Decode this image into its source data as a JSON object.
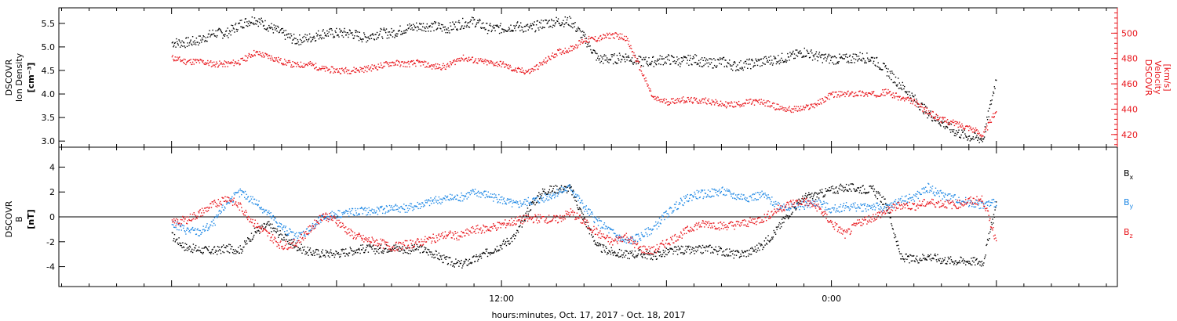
{
  "chart_data": [
    {
      "type": "scatter",
      "panel": "top",
      "ylabel_left": [
        "DSCOVR",
        "Ion Density",
        "[cm⁻³]"
      ],
      "ylabel_right": [
        "DSCOVR",
        "Velocity",
        "[km/s]"
      ],
      "ylim_left": [
        2.87,
        5.83
      ],
      "ylim_right": [
        410,
        520
      ],
      "yticks_left": [
        "3.0",
        "3.5",
        "4.0",
        "4.5",
        "5.0",
        "5.5"
      ],
      "yticks_right": [
        "420",
        "440",
        "460",
        "480",
        "500"
      ],
      "colors": {
        "density": "#000000",
        "velocity": "#e8161c"
      },
      "series": [
        {
          "axis": "left",
          "x_hours": [
            0,
            0.5,
            1,
            1.5,
            2,
            2.5,
            3,
            3.5,
            4,
            4.5,
            5,
            5.5,
            6,
            6.5,
            7,
            7.5,
            8,
            8.5,
            9,
            9.5,
            10,
            10.5,
            11,
            11.5,
            12,
            12.5,
            13,
            13.5,
            14,
            14.5,
            15,
            15.5,
            16,
            16.5,
            17,
            17.5,
            18,
            18.5,
            19,
            19.5,
            20,
            20.5,
            21,
            21.5,
            22,
            22.5,
            23,
            23.5,
            24,
            24.5,
            25,
            25.5,
            26,
            26.5,
            27,
            27.5,
            28,
            28.5,
            29,
            29.5,
            30
          ],
          "values": [
            5.1,
            5.1,
            5.15,
            5.3,
            5.3,
            5.5,
            5.6,
            5.45,
            5.3,
            5.15,
            5.2,
            5.3,
            5.3,
            5.3,
            5.2,
            5.3,
            5.3,
            5.4,
            5.45,
            5.45,
            5.4,
            5.5,
            5.55,
            5.4,
            5.4,
            5.45,
            5.4,
            5.5,
            5.55,
            5.55,
            5.2,
            4.75,
            4.75,
            4.8,
            4.7,
            4.7,
            4.75,
            4.7,
            4.75,
            4.65,
            4.7,
            4.6,
            4.65,
            4.7,
            4.75,
            4.8,
            4.9,
            4.8,
            4.75,
            4.75,
            4.8,
            4.75,
            4.5,
            4.2,
            3.9,
            3.6,
            3.4,
            3.2,
            3.1,
            3.05,
            4.4
          ]
        },
        {
          "axis": "right",
          "x_hours": [
            0,
            0.5,
            1,
            1.5,
            2,
            2.5,
            3,
            3.5,
            4,
            4.5,
            5,
            5.5,
            6,
            6.5,
            7,
            7.5,
            8,
            8.5,
            9,
            9.5,
            10,
            10.5,
            11,
            11.5,
            12,
            12.5,
            13,
            13.5,
            14,
            14.5,
            15,
            15.5,
            16,
            16.5,
            17,
            17.5,
            18,
            18.5,
            19,
            19.5,
            20,
            20.5,
            21,
            21.5,
            22,
            22.5,
            23,
            23.5,
            24,
            24.5,
            25,
            25.5,
            26,
            26.5,
            27,
            27.5,
            28,
            28.5,
            29,
            29.5,
            30
          ],
          "values": [
            481,
            478,
            478,
            476,
            476,
            478,
            485,
            482,
            478,
            475,
            476,
            472,
            471,
            471,
            472,
            474,
            477,
            476,
            477,
            474,
            474,
            481,
            479,
            477,
            476,
            471,
            470,
            477,
            485,
            488,
            495,
            496,
            499,
            497,
            474,
            449,
            446,
            448,
            447,
            447,
            444,
            444,
            446,
            446,
            442,
            440,
            441,
            445,
            452,
            452,
            453,
            452,
            454,
            449,
            446,
            438,
            432,
            429,
            426,
            420,
            440
          ]
        }
      ]
    },
    {
      "type": "scatter",
      "panel": "bottom",
      "ylabel_left": [
        "DSCOVR",
        "B",
        "[nT]"
      ],
      "ylim_left": [
        -5.6,
        5.6
      ],
      "yticks_left": [
        "-4",
        "-2",
        "0",
        "2",
        "4"
      ],
      "zero_line": true,
      "x_range_hours": [
        -4.1,
        34.4
      ],
      "xticks": [
        "12:00",
        "0:00"
      ],
      "xlabel": "hours:minutes, Oct. 17, 2017 - Oct. 18, 2017",
      "legend_position": "right",
      "series": [
        {
          "name": "Bx",
          "label_main": "B",
          "label_sub": "x",
          "color": "#000000",
          "x_hours": [
            0,
            0.5,
            1,
            1.5,
            2,
            2.5,
            3,
            3.5,
            4,
            4.5,
            5,
            5.5,
            6,
            6.5,
            7,
            7.5,
            8,
            8.5,
            9,
            9.5,
            10,
            10.5,
            11,
            11.5,
            12,
            12.5,
            13,
            13.5,
            14,
            14.5,
            15,
            15.5,
            16,
            16.5,
            17,
            17.5,
            18,
            18.5,
            19,
            19.5,
            20,
            20.5,
            21,
            21.5,
            22,
            22.5,
            23,
            23.5,
            24,
            24.5,
            25,
            25.5,
            26,
            26.5,
            27,
            27.5,
            28,
            28.5,
            29,
            29.5,
            30
          ],
          "values": [
            -1.5,
            -2.4,
            -2.6,
            -2.7,
            -2.5,
            -2.6,
            -1.2,
            -0.6,
            -1.5,
            -2.3,
            -2.8,
            -2.9,
            -2.9,
            -2.7,
            -2.5,
            -2.6,
            -2.4,
            -2.6,
            -2.5,
            -2.9,
            -3.5,
            -3.8,
            -3.4,
            -2.8,
            -2.2,
            -1.5,
            0.8,
            2.1,
            2.3,
            2.3,
            -0.2,
            -2.4,
            -2.8,
            -3.0,
            -2.9,
            -3.1,
            -2.8,
            -2.6,
            -2.7,
            -2.5,
            -2.7,
            -3.0,
            -2.8,
            -2.2,
            -1.0,
            0.5,
            1.6,
            1.8,
            2.2,
            2.4,
            2.3,
            2.2,
            1.0,
            -3.2,
            -3.4,
            -3.1,
            -3.4,
            -3.5,
            -3.5,
            -3.6,
            1.2
          ]
        },
        {
          "name": "By",
          "label_main": "B",
          "label_sub": "y",
          "color": "#1e88e5",
          "x_hours": [
            0,
            0.5,
            1,
            1.5,
            2,
            2.5,
            3,
            3.5,
            4,
            4.5,
            5,
            5.5,
            6,
            6.5,
            7,
            7.5,
            8,
            8.5,
            9,
            9.5,
            10,
            10.5,
            11,
            11.5,
            12,
            12.5,
            13,
            13.5,
            14,
            14.5,
            15,
            15.5,
            16,
            16.5,
            17,
            17.5,
            18,
            18.5,
            19,
            19.5,
            20,
            20.5,
            21,
            21.5,
            22,
            22.5,
            23,
            23.5,
            24,
            24.5,
            25,
            25.5,
            26,
            26.5,
            27,
            27.5,
            28,
            28.5,
            29,
            29.5,
            30
          ],
          "values": [
            -0.5,
            -1.0,
            -1.2,
            -0.5,
            1.2,
            2.0,
            1.3,
            0.3,
            -0.8,
            -1.6,
            -1.0,
            0.0,
            0.3,
            0.4,
            0.5,
            0.5,
            0.8,
            0.7,
            1.0,
            1.3,
            1.5,
            1.6,
            2.0,
            1.8,
            1.4,
            1.0,
            1.3,
            1.5,
            2.0,
            2.4,
            0.8,
            -0.4,
            -1.2,
            -2.0,
            -1.6,
            -0.9,
            0.3,
            1.2,
            1.8,
            1.9,
            2.1,
            1.7,
            1.6,
            1.8,
            1.0,
            0.8,
            1.0,
            1.2,
            0.6,
            0.9,
            0.8,
            0.9,
            0.7,
            1.4,
            1.6,
            2.4,
            1.8,
            1.5,
            1.2,
            1.0,
            1.2
          ]
        },
        {
          "name": "Bz",
          "label_main": "B",
          "label_sub": "z",
          "color": "#e8161c",
          "x_hours": [
            0,
            0.5,
            1,
            1.5,
            2,
            2.5,
            3,
            3.5,
            4,
            4.5,
            5,
            5.5,
            6,
            6.5,
            7,
            7.5,
            8,
            8.5,
            9,
            9.5,
            10,
            10.5,
            11,
            11.5,
            12,
            12.5,
            13,
            13.5,
            14,
            14.5,
            15,
            15.5,
            16,
            16.5,
            17,
            17.5,
            18,
            18.5,
            19,
            19.5,
            20,
            20.5,
            21,
            21.5,
            22,
            22.5,
            23,
            23.5,
            24,
            24.5,
            25,
            25.5,
            26,
            26.5,
            27,
            27.5,
            28,
            28.5,
            29,
            29.5,
            30
          ],
          "values": [
            -0.5,
            -0.2,
            0.3,
            1.0,
            1.6,
            0.8,
            -0.5,
            -1.4,
            -2.3,
            -2.1,
            -1.0,
            0.2,
            -0.3,
            -1.3,
            -1.8,
            -2.0,
            -2.4,
            -2.2,
            -2.0,
            -1.7,
            -1.4,
            -1.5,
            -1.0,
            -0.9,
            -0.6,
            -0.3,
            -0.1,
            -0.1,
            -0.2,
            0.4,
            -0.4,
            -1.3,
            -2.0,
            -1.5,
            -2.5,
            -2.7,
            -2.0,
            -1.4,
            -0.7,
            -0.5,
            -0.7,
            -0.6,
            -0.4,
            -0.1,
            0.6,
            1.1,
            1.3,
            0.8,
            -0.5,
            -1.4,
            -0.4,
            0.0,
            0.5,
            1.0,
            0.9,
            1.2,
            1.1,
            1.0,
            1.3,
            1.4,
            -2.0
          ]
        }
      ]
    }
  ]
}
